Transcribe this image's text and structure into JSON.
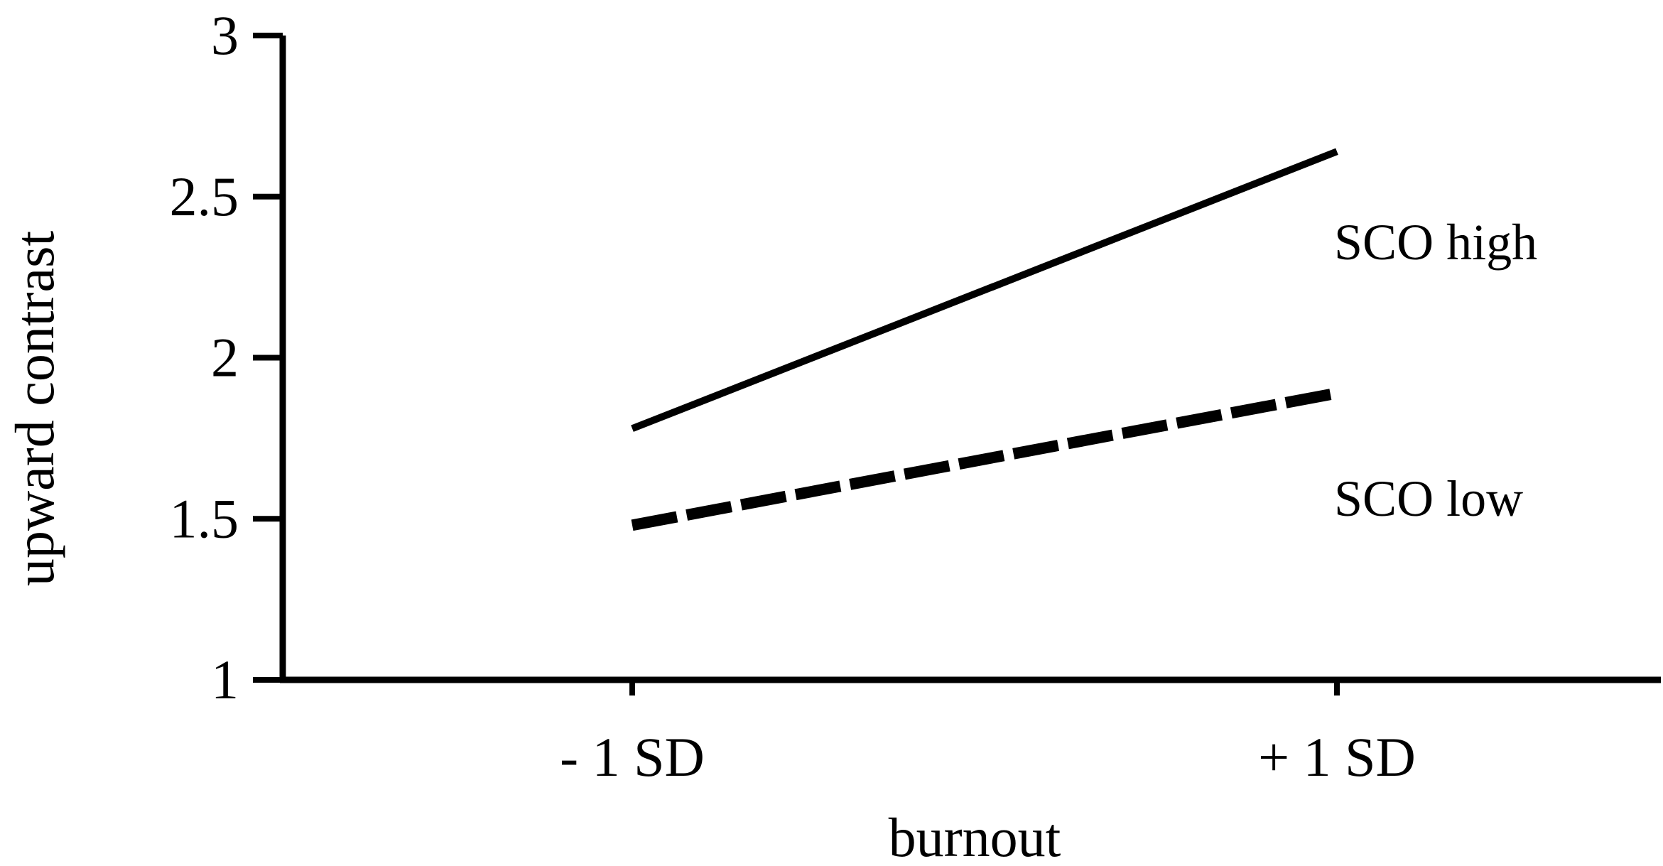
{
  "chart_data": {
    "type": "line",
    "xlabel": "burnout",
    "ylabel": "upward contrast",
    "categories": [
      "- 1 SD",
      "+ 1 SD"
    ],
    "ylim": [
      1,
      3
    ],
    "yticks": [
      1,
      1.5,
      2,
      2.5,
      3
    ],
    "ytick_labels": [
      "1",
      "1.5",
      "2",
      "2.5",
      "3"
    ],
    "grid": false,
    "legend": "none",
    "series": [
      {
        "name": "SCO high",
        "values": [
          1.78,
          2.64
        ],
        "line_style": "solid",
        "color": "#000000"
      },
      {
        "name": "SCO low",
        "values": [
          1.48,
          1.89
        ],
        "line_style": "dashed",
        "color": "#000000"
      }
    ]
  }
}
